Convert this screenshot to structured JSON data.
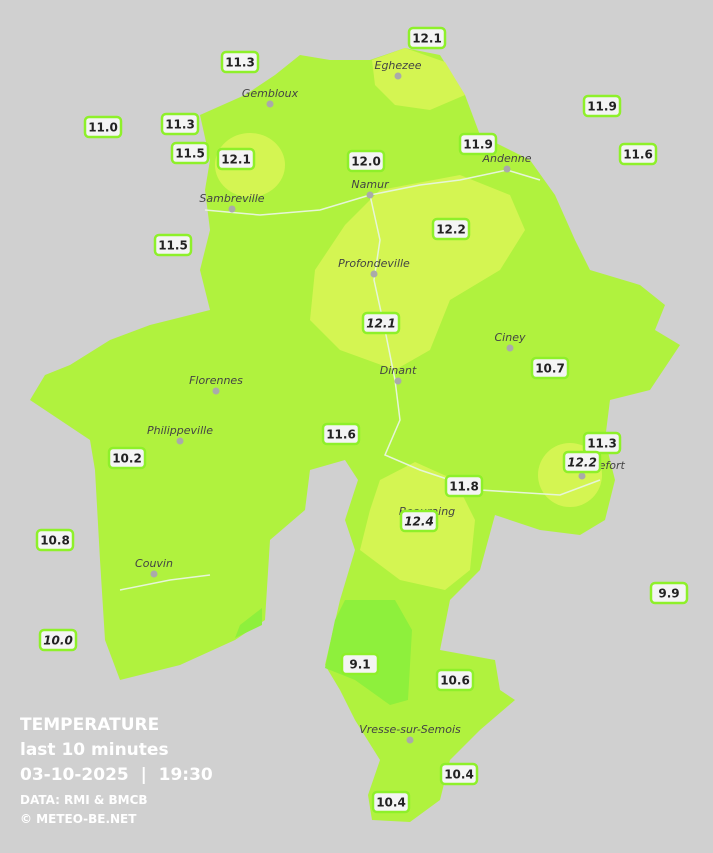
{
  "legend": {
    "title": "TEMPERATURE",
    "period": "last 10 minutes",
    "datetime": "03-10-2025  |  19:30",
    "source": "DATA: RMI & BMCB",
    "credit": "© METEO-BE.NET"
  },
  "towns": [
    "Eghezee",
    "Gembloux",
    "Andenne",
    "Namur",
    "Sambreville",
    "Profondeville",
    "Ciney",
    "Dinant",
    "Florennes",
    "Philippeville",
    "Couvin",
    "Vresse-sur-Semois",
    "Rochefort",
    "Beauraing"
  ],
  "stations": [
    "11.3",
    "12.1",
    "11.9",
    "11.0",
    "11.3",
    "11.5",
    "12.1",
    "12.0",
    "11.9",
    "11.6",
    "12.2",
    "11.5",
    "12.1",
    "10.7",
    "11.6",
    "11.3",
    "12.2",
    "10.2",
    "11.8",
    "12.4",
    "10.8",
    "9.9",
    "10.0",
    "9.1",
    "10.6",
    "10.4",
    "10.4"
  ]
}
